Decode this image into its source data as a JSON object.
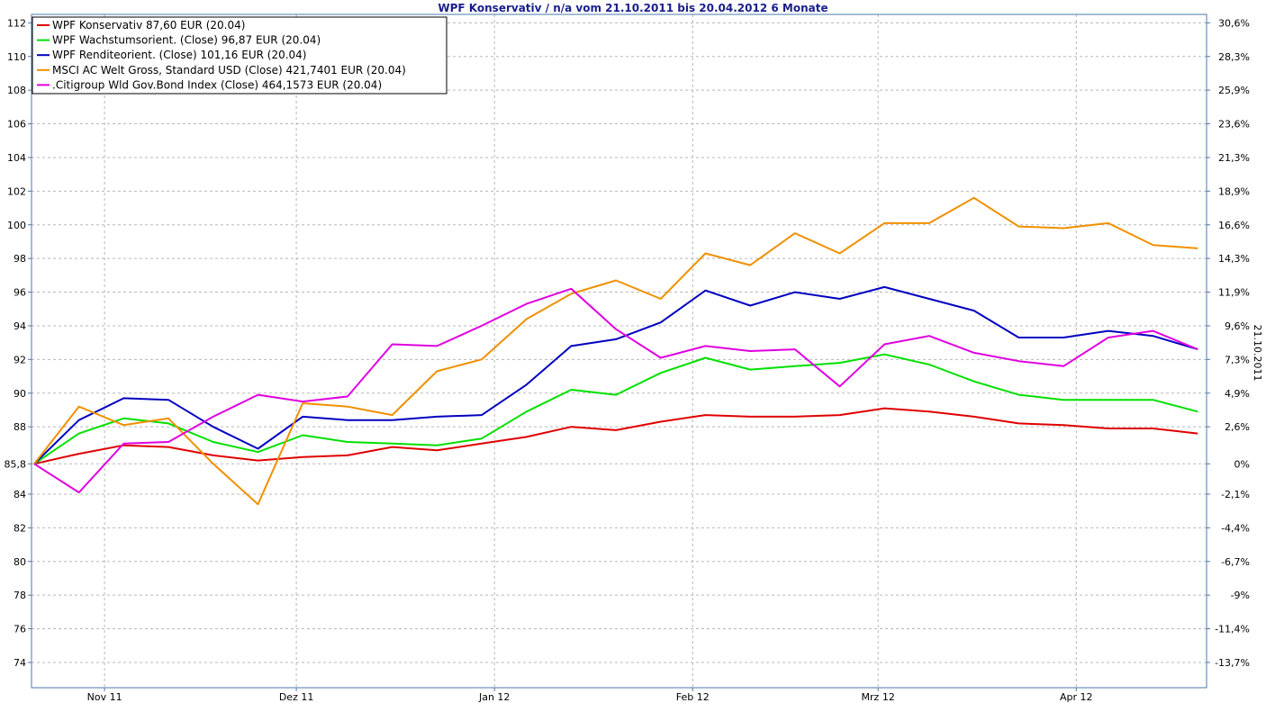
{
  "chart_data": {
    "type": "line",
    "title": "WPF Konservativ / n/a vom 21.10.2011 bis 20.04.2012 6 Monate",
    "base_value": 85.8,
    "ylim": [
      72.5,
      112.5
    ],
    "right_axis_label": "21.10.2011",
    "left_ticks": [
      "112",
      "110",
      "108",
      "106",
      "104",
      "102",
      "100",
      "98",
      "96",
      "94",
      "92",
      "90",
      "88",
      "85,8",
      "84",
      "82",
      "80",
      "78",
      "76",
      "74"
    ],
    "left_tick_values": [
      112,
      110,
      108,
      106,
      104,
      102,
      100,
      98,
      96,
      94,
      92,
      90,
      88,
      85.8,
      84,
      82,
      80,
      78,
      76,
      74
    ],
    "right_ticks": [
      "30,6%",
      "28,3%",
      "25,9%",
      "23,6%",
      "21,3%",
      "18,9%",
      "16,6%",
      "14,3%",
      "11,9%",
      "9,6%",
      "7,3%",
      "4,9%",
      "2,6%",
      "0%",
      "-2,1%",
      "-4,4%",
      "-6,7%",
      "-9%",
      "-11,4%",
      "-13,7%"
    ],
    "x": [
      "2011-10-21",
      "2011-10-28",
      "2011-11-04",
      "2011-11-11",
      "2011-11-18",
      "2011-11-25",
      "2011-12-02",
      "2011-12-09",
      "2011-12-16",
      "2011-12-23",
      "2011-12-30",
      "2012-01-06",
      "2012-01-13",
      "2012-01-20",
      "2012-01-27",
      "2012-02-03",
      "2012-02-10",
      "2012-02-17",
      "2012-02-24",
      "2012-03-02",
      "2012-03-09",
      "2012-03-16",
      "2012-03-23",
      "2012-03-30",
      "2012-04-06",
      "2012-04-13",
      "2012-04-20"
    ],
    "x_tick_labels": [
      {
        "label": "Nov 11",
        "date": "2011-11-01"
      },
      {
        "label": "Dez 11",
        "date": "2011-12-01"
      },
      {
        "label": "Jan 12",
        "date": "2012-01-01"
      },
      {
        "label": "Feb 12",
        "date": "2012-02-01"
      },
      {
        "label": "Mrz 12",
        "date": "2012-03-01"
      },
      {
        "label": "Apr 12",
        "date": "2012-04-01"
      }
    ],
    "grid": true,
    "legend_position": "top-left",
    "series": [
      {
        "name": "WPF Konservativ 87,60 EUR (20.04)",
        "color": "#e00000",
        "values": [
          85.8,
          86.4,
          86.9,
          86.8,
          86.3,
          86.0,
          86.2,
          86.3,
          86.8,
          86.6,
          87.0,
          87.4,
          88.0,
          87.8,
          88.3,
          88.7,
          88.6,
          88.6,
          88.7,
          89.1,
          88.9,
          88.6,
          88.2,
          88.1,
          87.9,
          87.9,
          87.6
        ]
      },
      {
        "name": "WPF Wachstumsorient. (Close) 96,87 EUR (20.04)",
        "color": "#00e000",
        "values": [
          85.8,
          87.6,
          88.5,
          88.2,
          87.1,
          86.5,
          87.5,
          87.1,
          87.0,
          86.9,
          87.3,
          88.9,
          90.2,
          89.9,
          91.2,
          92.1,
          91.4,
          91.6,
          91.8,
          92.3,
          91.7,
          90.7,
          89.9,
          89.6,
          89.6,
          89.6,
          88.9
        ]
      },
      {
        "name": "WPF Renditeorient. (Close) 101,16 EUR (20.04)",
        "color": "#0000c0",
        "values": [
          85.8,
          88.4,
          89.7,
          89.6,
          88.0,
          86.7,
          88.6,
          88.4,
          88.4,
          88.6,
          88.7,
          90.5,
          92.8,
          93.2,
          94.2,
          96.1,
          95.2,
          96.0,
          95.6,
          96.3,
          95.6,
          94.9,
          93.3,
          93.3,
          93.7,
          93.4,
          92.6
        ]
      },
      {
        "name": "MSCI AC Welt Gross, Standard USD (Close) 421,7401 EUR (20.04)",
        "color": "#f09000",
        "values": [
          85.8,
          89.2,
          88.1,
          88.5,
          85.8,
          83.4,
          89.4,
          89.2,
          88.7,
          91.3,
          92.0,
          94.4,
          95.9,
          96.7,
          95.6,
          98.3,
          97.6,
          99.5,
          98.3,
          100.1,
          100.1,
          101.6,
          99.9,
          99.8,
          100.1,
          98.8,
          98.6
        ]
      },
      {
        "name": ".Citigroup Wld Gov.Bond Index (Close) 464,1573 EUR (20.04)",
        "color": "#e000e0",
        "values": [
          85.8,
          84.1,
          87.0,
          87.1,
          88.6,
          89.9,
          89.5,
          89.8,
          92.9,
          92.8,
          94.0,
          95.3,
          96.2,
          93.8,
          92.1,
          92.8,
          92.5,
          92.6,
          90.4,
          92.9,
          93.4,
          92.4,
          91.9,
          91.6,
          93.3,
          93.7,
          92.6
        ]
      }
    ]
  }
}
